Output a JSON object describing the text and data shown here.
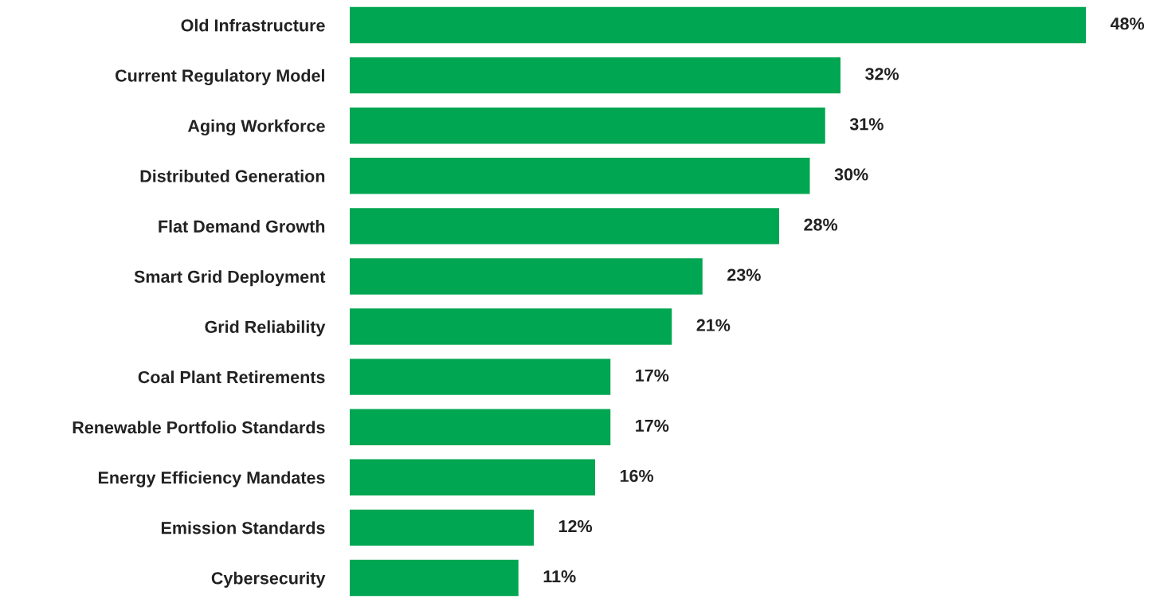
{
  "chart_data": {
    "type": "bar",
    "orientation": "horizontal",
    "categories": [
      "Old Infrastructure",
      "Current Regulatory Model",
      "Aging Workforce",
      "Distributed Generation",
      "Flat Demand Growth",
      "Smart Grid Deployment",
      "Grid Reliability",
      "Coal Plant Retirements",
      "Renewable Portfolio Standards",
      "Energy Efficiency Mandates",
      "Emission Standards",
      "Cybersecurity"
    ],
    "values": [
      48,
      32,
      31,
      30,
      28,
      23,
      21,
      17,
      17,
      16,
      12,
      11
    ],
    "value_labels": [
      "48%",
      "32%",
      "31%",
      "30%",
      "28%",
      "23%",
      "21%",
      "17%",
      "17%",
      "16%",
      "12%",
      "11%"
    ],
    "color": "#00a651",
    "xlim": [
      0,
      48
    ],
    "tick_labels": "y",
    "grid": false,
    "legend": false
  }
}
